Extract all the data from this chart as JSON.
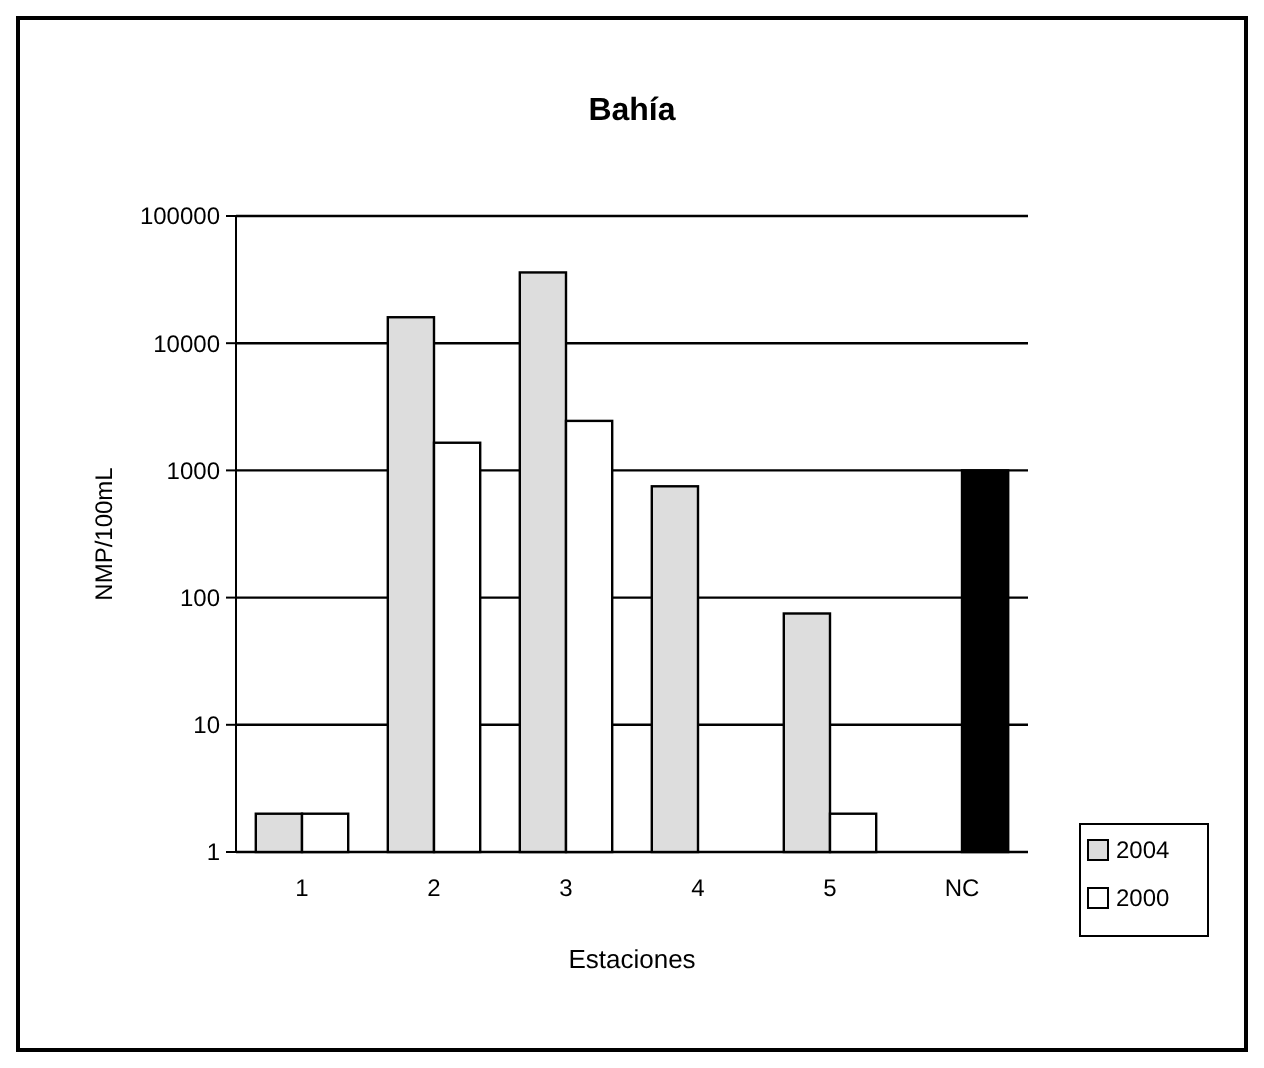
{
  "chart_data": {
    "type": "bar",
    "title": "Bahía",
    "xlabel": "Estaciones",
    "ylabel": "NMP/100mL",
    "categories": [
      "1",
      "2",
      "3",
      "4",
      "5",
      "NC"
    ],
    "series": [
      {
        "name": "2004",
        "color": "#dddddd",
        "values": [
          2,
          16000,
          36000,
          750,
          75,
          null
        ]
      },
      {
        "name": "2000",
        "color": "#ffffff",
        "colors": [
          "#ffffff",
          "#ffffff",
          "#ffffff",
          "#ffffff",
          "#ffffff",
          "#000000"
        ],
        "values": [
          2,
          1650,
          2450,
          null,
          2,
          1000
        ]
      }
    ],
    "log": true,
    "ylim": [
      1,
      100000
    ],
    "yticks": [
      1,
      10,
      100,
      1000,
      10000,
      100000
    ],
    "grid": "y",
    "legend": "bottom right"
  }
}
